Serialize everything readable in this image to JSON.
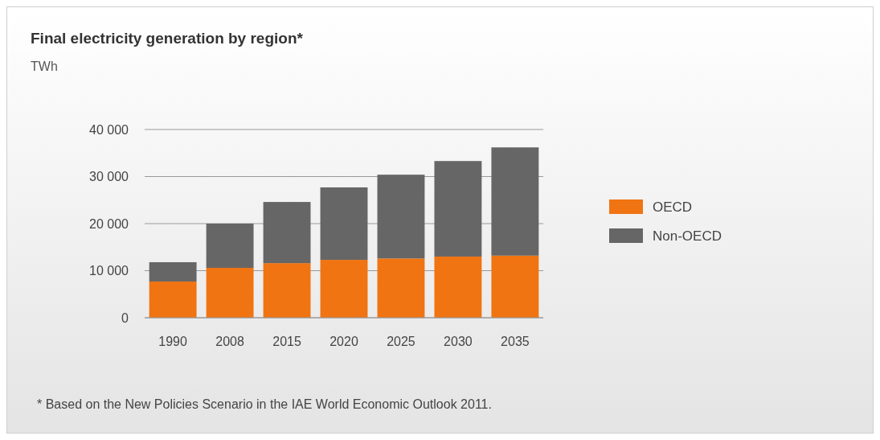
{
  "chart_data": {
    "type": "bar",
    "title": "Final electricity generation by region*",
    "ylabel": "TWh",
    "categories": [
      "1990",
      "2008",
      "2015",
      "2020",
      "2025",
      "2030",
      "2035"
    ],
    "stacked": true,
    "series": [
      {
        "name": "OECD",
        "color": "#f07412",
        "values": [
          7700,
          10600,
          11600,
          12300,
          12600,
          13000,
          13200
        ]
      },
      {
        "name": "Non-OECD",
        "color": "#666666",
        "values": [
          4100,
          9400,
          13000,
          15400,
          17800,
          20300,
          23000
        ]
      }
    ],
    "ylim": [
      0,
      40000
    ],
    "yticks": [
      {
        "value": 0,
        "label": "0"
      },
      {
        "value": 10000,
        "label": "10 000"
      },
      {
        "value": 20000,
        "label": "20 000"
      },
      {
        "value": 30000,
        "label": "30 000"
      },
      {
        "value": 40000,
        "label": "40 000"
      }
    ],
    "grid": "y",
    "legend": "right",
    "annotations": [
      "* Based on the New Policies Scenario in the IAE World Economic Outlook 2011."
    ]
  }
}
